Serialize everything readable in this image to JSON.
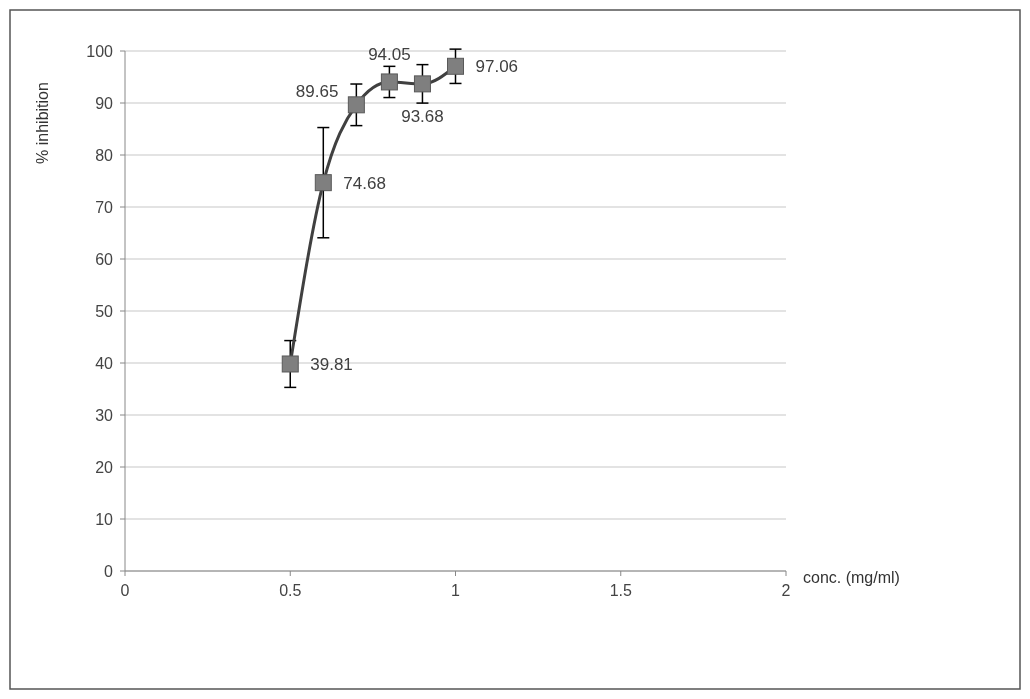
{
  "chart_data": {
    "type": "line",
    "xlabel": "conc. (mg/ml)",
    "ylabel": "% inhibition",
    "x": [
      0.5,
      0.6,
      0.7,
      0.8,
      0.9,
      1.0
    ],
    "series": [
      {
        "color": "#404040",
        "values": [
          39.81,
          74.68,
          89.65,
          94.05,
          93.68,
          97.06
        ],
        "errors": [
          4.5,
          10.6,
          4,
          3,
          3.7,
          3.3
        ]
      }
    ],
    "xlim": [
      0,
      2
    ],
    "xticks": [
      0,
      0.5,
      1,
      1.5,
      2
    ],
    "ylim": [
      0,
      100
    ],
    "yticks": [
      0,
      10,
      20,
      30,
      40,
      50,
      60,
      70,
      80,
      90,
      100
    ],
    "grid": "y",
    "marker": "square",
    "line_style": "solid",
    "data_labels": true
  }
}
